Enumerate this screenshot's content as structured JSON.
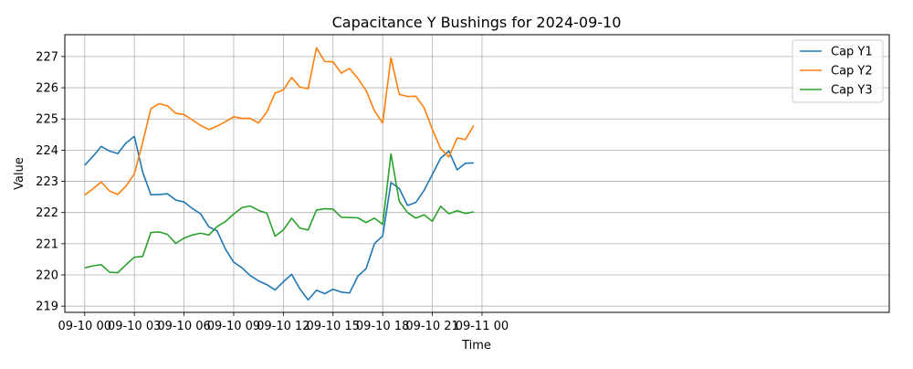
{
  "chart_data": {
    "type": "line",
    "title": "Capacitance Y Bushings for 2024-09-10",
    "xlabel": "Time",
    "ylabel": "Value",
    "x_range_hours": [
      -1.2,
      48.6
    ],
    "ylim": [
      218.8,
      227.7
    ],
    "grid": true,
    "legend_position": "top-right",
    "x_ticks": [
      {
        "hour": 0,
        "label": "09-10 00"
      },
      {
        "hour": 3,
        "label": "09-10 03"
      },
      {
        "hour": 6,
        "label": "09-10 06"
      },
      {
        "hour": 9,
        "label": "09-10 09"
      },
      {
        "hour": 12,
        "label": "09-10 12"
      },
      {
        "hour": 15,
        "label": "09-10 15"
      },
      {
        "hour": 18,
        "label": "09-10 18"
      },
      {
        "hour": 21,
        "label": "09-10 21"
      },
      {
        "hour": 24,
        "label": "09-11 00"
      }
    ],
    "y_ticks": [
      219,
      220,
      221,
      222,
      223,
      224,
      225,
      226,
      227
    ],
    "x": [
      "2024-09-10 00:00",
      "2024-09-10 00:30",
      "2024-09-10 01:00",
      "2024-09-10 01:30",
      "2024-09-10 02:00",
      "2024-09-10 02:30",
      "2024-09-10 03:00",
      "2024-09-10 03:30",
      "2024-09-10 04:00",
      "2024-09-10 04:30",
      "2024-09-10 05:00",
      "2024-09-10 05:30",
      "2024-09-10 06:00",
      "2024-09-10 06:30",
      "2024-09-10 07:00",
      "2024-09-10 07:30",
      "2024-09-10 08:00",
      "2024-09-10 08:30",
      "2024-09-10 09:00",
      "2024-09-10 09:30",
      "2024-09-10 10:00",
      "2024-09-10 10:30",
      "2024-09-10 11:00",
      "2024-09-10 11:30",
      "2024-09-10 12:00",
      "2024-09-10 12:30",
      "2024-09-10 13:00",
      "2024-09-10 13:30",
      "2024-09-10 14:00",
      "2024-09-10 14:30",
      "2024-09-10 15:00",
      "2024-09-10 15:30",
      "2024-09-10 16:00",
      "2024-09-10 16:30",
      "2024-09-10 17:00",
      "2024-09-10 17:30",
      "2024-09-10 18:00",
      "2024-09-10 18:30",
      "2024-09-10 19:00",
      "2024-09-10 19:30",
      "2024-09-10 20:00",
      "2024-09-10 20:30",
      "2024-09-10 21:00",
      "2024-09-10 21:30",
      "2024-09-10 22:00",
      "2024-09-10 22:30",
      "2024-09-10 23:00",
      "2024-09-10 23:30"
    ],
    "series": [
      {
        "name": "Cap Y1",
        "color": "#1f77b4",
        "values": [
          223.52,
          223.8,
          224.12,
          223.97,
          223.89,
          224.23,
          224.44,
          223.3,
          222.57,
          222.58,
          222.6,
          222.4,
          222.34,
          222.13,
          221.96,
          221.54,
          221.41,
          220.83,
          220.41,
          220.23,
          219.98,
          219.81,
          219.69,
          219.52,
          219.78,
          220.02,
          219.55,
          219.2,
          219.51,
          219.4,
          219.54,
          219.45,
          219.42,
          219.96,
          220.2,
          221.0,
          221.25,
          222.96,
          222.77,
          222.23,
          222.32,
          222.71,
          223.22,
          223.74,
          223.97,
          223.37,
          223.58,
          223.59
        ]
      },
      {
        "name": "Cap Y2",
        "color": "#ff7f0e",
        "values": [
          222.56,
          222.76,
          222.98,
          222.69,
          222.58,
          222.85,
          223.24,
          224.24,
          225.33,
          225.49,
          225.42,
          225.18,
          225.14,
          224.97,
          224.79,
          224.66,
          224.77,
          224.91,
          225.07,
          225.02,
          225.02,
          224.87,
          225.22,
          225.83,
          225.93,
          226.33,
          226.02,
          225.97,
          227.28,
          226.84,
          226.83,
          226.47,
          226.62,
          226.3,
          225.91,
          225.26,
          224.87,
          226.96,
          225.79,
          225.72,
          225.73,
          225.36,
          224.67,
          224.05,
          223.78,
          224.39,
          224.34,
          224.79
        ]
      },
      {
        "name": "Cap Y3",
        "color": "#2ca02c",
        "values": [
          220.23,
          220.29,
          220.33,
          220.09,
          220.07,
          220.33,
          220.57,
          220.59,
          221.36,
          221.38,
          221.3,
          221.01,
          221.18,
          221.28,
          221.34,
          221.28,
          221.55,
          221.71,
          221.95,
          222.16,
          222.21,
          222.07,
          221.98,
          221.24,
          221.44,
          221.82,
          221.5,
          221.44,
          222.08,
          222.12,
          222.11,
          221.85,
          221.84,
          221.83,
          221.68,
          221.82,
          221.62,
          223.88,
          222.36,
          222.0,
          221.82,
          221.93,
          221.72,
          222.2,
          221.96,
          222.06,
          221.97,
          222.02
        ]
      }
    ]
  }
}
